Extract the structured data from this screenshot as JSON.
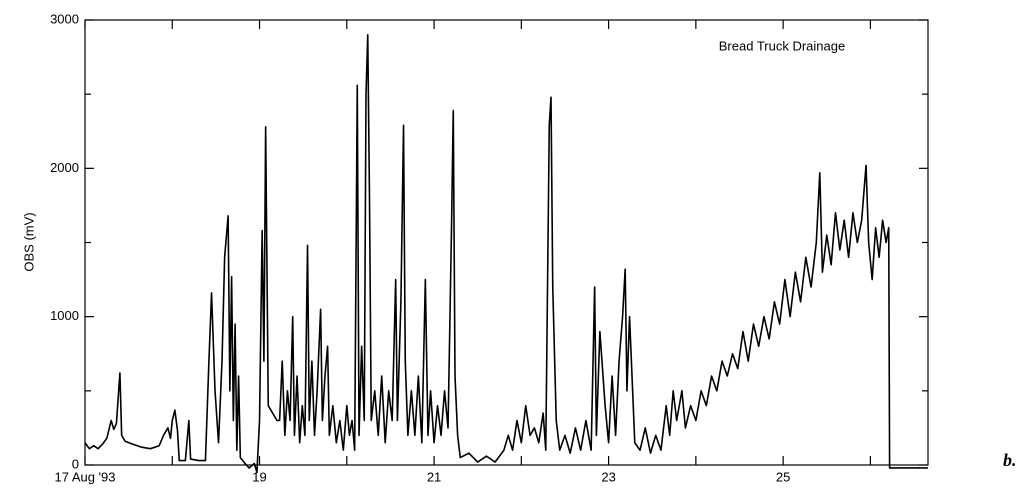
{
  "chart_data": {
    "type": "line",
    "y_label": "OBS (mV)",
    "annotation": "Bread Truck Drainage",
    "panel_label": "b.",
    "color": "#000000",
    "xlim": [
      17,
      26.66
    ],
    "ylim": [
      0,
      3000
    ],
    "xticks": [
      {
        "value": 17,
        "label": "17 Aug '93"
      },
      19,
      21,
      23,
      25
    ],
    "xminor_ticks": [
      18,
      20,
      22,
      24,
      26
    ],
    "yticks": [
      0,
      1000,
      2000,
      3000
    ],
    "yminor_ticks": [
      500,
      1500,
      2500
    ],
    "x": [
      17.0,
      17.05,
      17.1,
      17.15,
      17.2,
      17.25,
      17.3,
      17.33,
      17.36,
      17.4,
      17.42,
      17.46,
      17.55,
      17.65,
      17.75,
      17.85,
      17.9,
      17.95,
      17.98,
      18.0,
      18.03,
      18.06,
      18.08,
      18.15,
      18.19,
      18.21,
      18.3,
      18.38,
      18.42,
      18.45,
      18.49,
      18.53,
      18.57,
      18.6,
      18.64,
      18.66,
      18.68,
      18.7,
      18.72,
      18.74,
      18.76,
      18.78,
      18.82,
      18.88,
      18.94,
      18.97,
      19.0,
      19.03,
      19.05,
      19.07,
      19.1,
      19.2,
      19.23,
      19.26,
      19.29,
      19.32,
      19.35,
      19.38,
      19.4,
      19.43,
      19.46,
      19.49,
      19.52,
      19.55,
      19.57,
      19.6,
      19.63,
      19.66,
      19.7,
      19.72,
      19.75,
      19.78,
      19.8,
      19.84,
      19.88,
      19.92,
      19.96,
      20.0,
      20.03,
      20.06,
      20.09,
      20.12,
      20.14,
      20.17,
      20.2,
      20.22,
      20.24,
      20.26,
      20.28,
      20.32,
      20.36,
      20.4,
      20.44,
      20.48,
      20.52,
      20.56,
      20.58,
      20.62,
      20.65,
      20.67,
      20.7,
      20.74,
      20.78,
      20.82,
      20.86,
      20.9,
      20.93,
      20.96,
      21.0,
      21.04,
      21.08,
      21.12,
      21.16,
      21.2,
      21.22,
      21.24,
      21.27,
      21.3,
      21.4,
      21.5,
      21.6,
      21.7,
      21.8,
      21.85,
      21.9,
      21.95,
      22.0,
      22.05,
      22.1,
      22.15,
      22.2,
      22.25,
      22.28,
      22.32,
      22.34,
      22.36,
      22.4,
      22.44,
      22.5,
      22.56,
      22.62,
      22.68,
      22.74,
      22.8,
      22.84,
      22.86,
      22.9,
      22.96,
      23.0,
      23.04,
      23.08,
      23.12,
      23.16,
      23.19,
      23.21,
      23.24,
      23.3,
      23.36,
      23.42,
      23.48,
      23.54,
      23.6,
      23.66,
      23.7,
      23.74,
      23.78,
      23.84,
      23.88,
      23.94,
      24.0,
      24.06,
      24.12,
      24.18,
      24.24,
      24.3,
      24.36,
      24.42,
      24.48,
      24.54,
      24.6,
      24.66,
      24.72,
      24.78,
      24.84,
      24.9,
      24.96,
      25.02,
      25.08,
      25.14,
      25.2,
      25.26,
      25.32,
      25.38,
      25.42,
      25.45,
      25.5,
      25.55,
      25.6,
      25.65,
      25.7,
      25.75,
      25.8,
      25.85,
      25.9,
      25.95,
      25.98,
      26.02,
      26.06,
      26.1,
      26.14,
      26.18,
      26.21,
      26.22,
      26.66
    ],
    "values": [
      150,
      110,
      130,
      110,
      140,
      180,
      300,
      240,
      280,
      620,
      200,
      160,
      140,
      120,
      110,
      130,
      200,
      250,
      180,
      300,
      370,
      230,
      30,
      30,
      300,
      40,
      30,
      30,
      700,
      1160,
      500,
      150,
      700,
      1400,
      1680,
      500,
      1270,
      300,
      950,
      100,
      600,
      50,
      20,
      -20,
      10,
      -50,
      300,
      1580,
      700,
      2280,
      400,
      300,
      300,
      700,
      200,
      500,
      300,
      1000,
      200,
      600,
      150,
      400,
      200,
      1480,
      300,
      700,
      200,
      500,
      1050,
      300,
      600,
      800,
      200,
      400,
      150,
      300,
      100,
      400,
      200,
      300,
      100,
      2560,
      200,
      800,
      300,
      2500,
      2900,
      1800,
      300,
      500,
      200,
      600,
      150,
      500,
      300,
      1250,
      300,
      1100,
      2290,
      700,
      200,
      500,
      200,
      600,
      150,
      1250,
      200,
      500,
      150,
      400,
      200,
      500,
      250,
      1600,
      2390,
      600,
      200,
      50,
      80,
      20,
      60,
      20,
      100,
      200,
      100,
      300,
      150,
      400,
      200,
      250,
      150,
      350,
      100,
      2290,
      2480,
      1200,
      300,
      100,
      200,
      80,
      250,
      100,
      300,
      100,
      1200,
      200,
      900,
      400,
      150,
      600,
      200,
      700,
      1000,
      1320,
      500,
      1000,
      150,
      100,
      250,
      80,
      200,
      100,
      400,
      200,
      500,
      300,
      500,
      250,
      400,
      300,
      500,
      400,
      600,
      500,
      700,
      600,
      750,
      650,
      900,
      700,
      950,
      800,
      1000,
      850,
      1100,
      950,
      1250,
      1000,
      1300,
      1100,
      1400,
      1200,
      1500,
      1970,
      1300,
      1550,
      1350,
      1700,
      1450,
      1650,
      1400,
      1700,
      1500,
      1650,
      2020,
      1500,
      1250,
      1600,
      1400,
      1650,
      1500,
      1600,
      -20,
      -20
    ]
  }
}
